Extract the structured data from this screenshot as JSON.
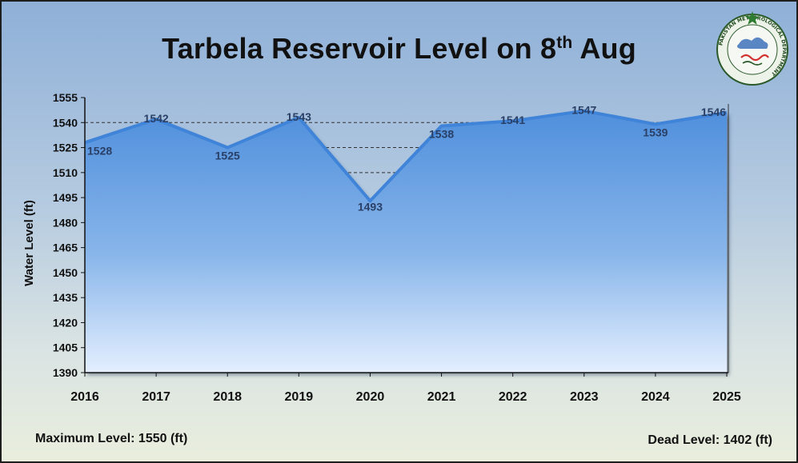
{
  "title": {
    "before": "Tarbela Reservoir Level on 8",
    "sup": "th",
    "after": " Aug"
  },
  "notes": {
    "maximum_level": "Maximum Level: 1550 (ft)",
    "dead_level": "Dead Level: 1402 (ft)"
  },
  "logo": {
    "text": "PAKISTAN METEOROLOGICAL DEPARTMENT",
    "colors": {
      "star": "#2e7d32",
      "ring": "#2a5a2a",
      "red": "#d32f2f"
    }
  },
  "colors": {
    "area_top": "#4f8fdc",
    "area_bottom": "#e4efff",
    "line": "#3f84d8",
    "label": "#2a3f66"
  },
  "chart_data": {
    "type": "area",
    "x": [
      "2016",
      "2017",
      "2018",
      "2019",
      "2020",
      "2021",
      "2022",
      "2023",
      "2024",
      "2025"
    ],
    "series": [
      {
        "values": [
          1528,
          1542,
          1525,
          1543,
          1493,
          1538,
          1541,
          1547,
          1539,
          1546
        ]
      }
    ],
    "data_labels": [
      "1528",
      "1542",
      "1525",
      "1543",
      "1493",
      "1538",
      "1541",
      "1547",
      "1539",
      "1546"
    ],
    "xlabel": "",
    "ylabel": "Water Level (ft)",
    "ylim": [
      1390,
      1555
    ],
    "yticks": [
      1390,
      1405,
      1420,
      1435,
      1450,
      1465,
      1480,
      1495,
      1510,
      1525,
      1540,
      1555
    ],
    "ytick_labels": [
      "1390",
      "1405",
      "1420",
      "1435",
      "1450",
      "1465",
      "1480",
      "1495",
      "1510",
      "1525",
      "1540",
      "1555"
    ],
    "gridlines": [
      1510,
      1525,
      1540
    ],
    "grid": true,
    "legend": "none"
  }
}
